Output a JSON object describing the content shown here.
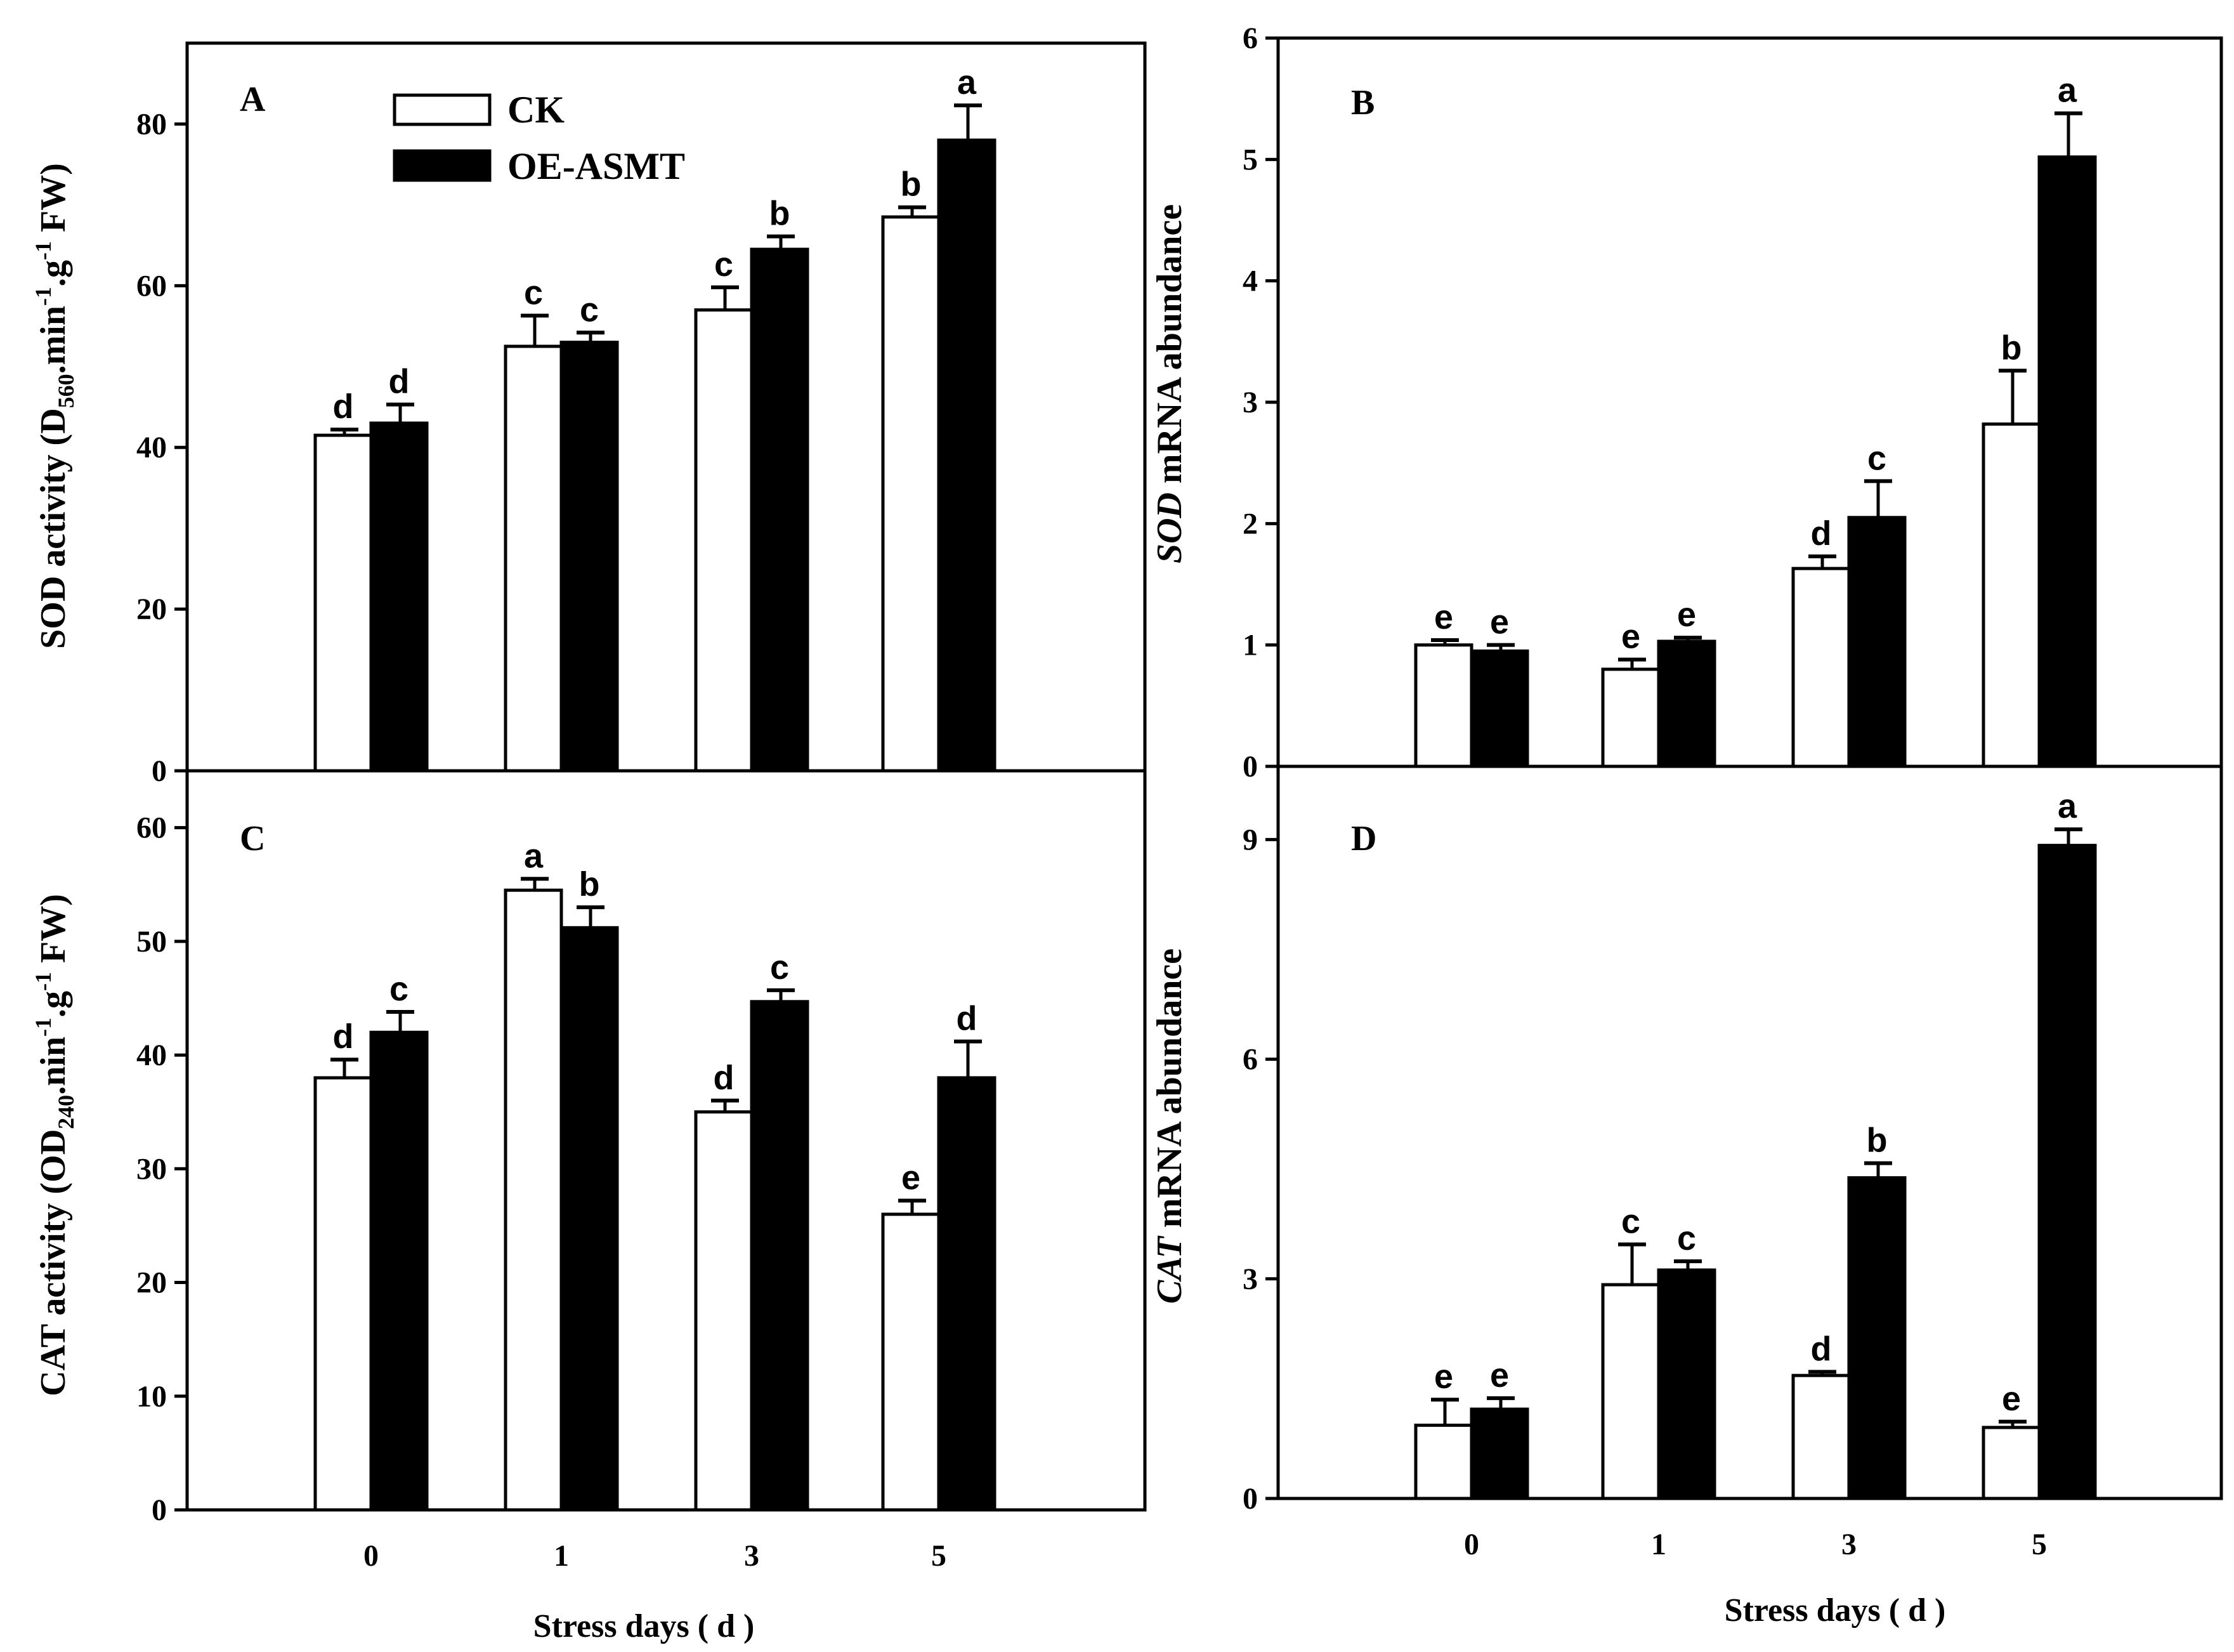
{
  "legend": {
    "ck_label": "CK",
    "oe_label": "OE-ASMT"
  },
  "colors": {
    "ck_fill": "#ffffff",
    "oe_fill": "#000000",
    "stroke": "#000000"
  },
  "chart_data": [
    {
      "panel": "A",
      "type": "bar",
      "categories": [
        "0",
        "1",
        "3",
        "5"
      ],
      "series": [
        {
          "name": "CK",
          "values": [
            41.5,
            52.5,
            57,
            68.5
          ],
          "errors": [
            0.7,
            3.8,
            2.8,
            1.2
          ],
          "letters": [
            "d",
            "c",
            "c",
            "b"
          ]
        },
        {
          "name": "OE-ASMT",
          "values": [
            43,
            53,
            64.5,
            78
          ],
          "errors": [
            2.3,
            1.2,
            1.6,
            4.3
          ],
          "letters": [
            "d",
            "c",
            "b",
            "a"
          ]
        }
      ],
      "ylim": [
        0,
        90
      ],
      "yticks": [
        0,
        20,
        40,
        60,
        80
      ],
      "ylabel": {
        "main": "SOD  activity (D",
        "sub": "560",
        "mid": ".min",
        "sup1": "-1",
        "mid2": ".g",
        "sup2": "-1",
        "end": " FW)"
      },
      "xlabel": ""
    },
    {
      "panel": "B",
      "type": "bar",
      "categories": [
        "0",
        "1",
        "3",
        "5"
      ],
      "series": [
        {
          "name": "CK",
          "values": [
            1.0,
            0.8,
            1.63,
            2.82
          ],
          "errors": [
            0.04,
            0.08,
            0.1,
            0.44
          ],
          "letters": [
            "e",
            "e",
            "d",
            "b"
          ]
        },
        {
          "name": "OE-ASMT",
          "values": [
            0.95,
            1.03,
            2.05,
            5.02
          ],
          "errors": [
            0.05,
            0.03,
            0.3,
            0.36
          ],
          "letters": [
            "e",
            "e",
            "c",
            "a"
          ]
        }
      ],
      "ylim": [
        0,
        6
      ],
      "yticks": [
        0,
        1,
        2,
        3,
        4,
        5,
        6
      ],
      "ylabel": {
        "italic": "SOD",
        "rest": " mRNA  abundance"
      },
      "xlabel": ""
    },
    {
      "panel": "C",
      "type": "bar",
      "categories": [
        "0",
        "1",
        "3",
        "5"
      ],
      "series": [
        {
          "name": "CK",
          "values": [
            38,
            54.5,
            35,
            26
          ],
          "errors": [
            1.6,
            1.0,
            1.0,
            1.2
          ],
          "letters": [
            "d",
            "a",
            "d",
            "e"
          ]
        },
        {
          "name": "OE-ASMT",
          "values": [
            42,
            51.2,
            44.7,
            38
          ],
          "errors": [
            1.8,
            1.8,
            1.0,
            3.2
          ],
          "letters": [
            "c",
            "b",
            "c",
            "d"
          ]
        }
      ],
      "ylim": [
        0,
        65
      ],
      "yticks": [
        0,
        10,
        20,
        30,
        40,
        50,
        60
      ],
      "ylabel": {
        "main": "CAT  activity  (OD",
        "sub": "240",
        "mid": ".nin",
        "sup1": "-1",
        "mid2": ".g",
        "sup2": "-1",
        "end": " FW)"
      },
      "xlabel": "Stress days ( d )"
    },
    {
      "panel": "D",
      "type": "bar",
      "categories": [
        "0",
        "1",
        "3",
        "5"
      ],
      "series": [
        {
          "name": "CK",
          "values": [
            1.0,
            2.92,
            1.68,
            0.97
          ],
          "errors": [
            0.35,
            0.55,
            0.05,
            0.08
          ],
          "letters": [
            "e",
            "c",
            "d",
            "e"
          ]
        },
        {
          "name": "OE-ASMT",
          "values": [
            1.22,
            3.12,
            4.38,
            8.92
          ],
          "errors": [
            0.15,
            0.12,
            0.2,
            0.22
          ],
          "letters": [
            "e",
            "c",
            "b",
            "a"
          ]
        }
      ],
      "ylim": [
        0,
        10
      ],
      "yticks": [
        0,
        3,
        6,
        9
      ],
      "ylabel": {
        "italic": "CAT",
        "rest": " mRNA  abundance"
      },
      "xlabel": "Stress days ( d )"
    }
  ]
}
